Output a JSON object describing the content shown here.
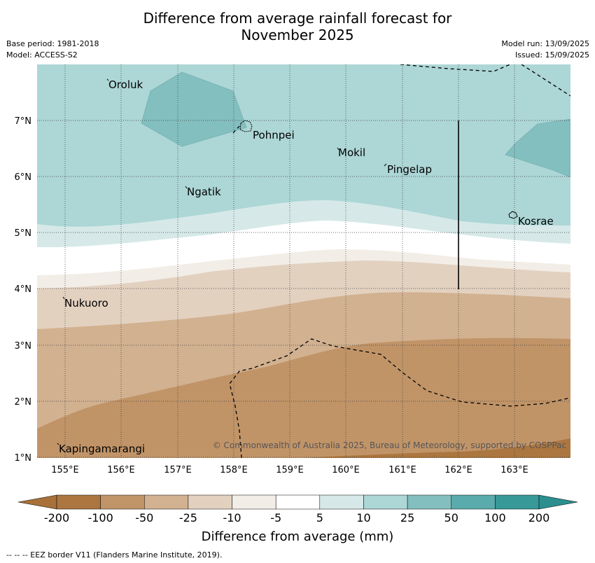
{
  "title_line1": "Difference from average rainfall forecast for",
  "title_line2": "November 2025",
  "base_period": "Base period: 1981-2018",
  "model": "Model: ACCESS-S2",
  "model_run": "Model run: 13/09/2025",
  "issued": "Issued: 15/09/2025",
  "map": {
    "lon_ticks": [
      "155°E",
      "156°E",
      "157°E",
      "158°E",
      "159°E",
      "160°E",
      "161°E",
      "162°E",
      "163°E"
    ],
    "lat_ticks": [
      "1°N",
      "2°N",
      "3°N",
      "4°N",
      "5°N",
      "6°N",
      "7°N"
    ],
    "places": [
      "Oroluk",
      "Pohnpei",
      "Mokil",
      "Pingelap",
      "Ngatik",
      "Kosrae",
      "Nukuoro",
      "Kapingamarangi"
    ],
    "copyright": "© Commonwealth of Australia 2025, Bureau of Meteorology, supported by COSPPac"
  },
  "legend": {
    "ticks": [
      "-200",
      "-100",
      "-50",
      "-25",
      "-10",
      "-5",
      "5",
      "10",
      "25",
      "50",
      "100",
      "200"
    ],
    "colors": [
      "#a8713a",
      "#ac7640",
      "#c19468",
      "#d2b190",
      "#e3d1c0",
      "#f2eee7",
      "#ffffff",
      "#d6e9e8",
      "#add6d6",
      "#84bfbf",
      "#5aabab",
      "#379998",
      "#2a8f8e"
    ],
    "label": "Difference from average (mm)"
  },
  "footer": "--  --  -- EEZ border V11 (Flanders Marine Institute, 2019)."
}
